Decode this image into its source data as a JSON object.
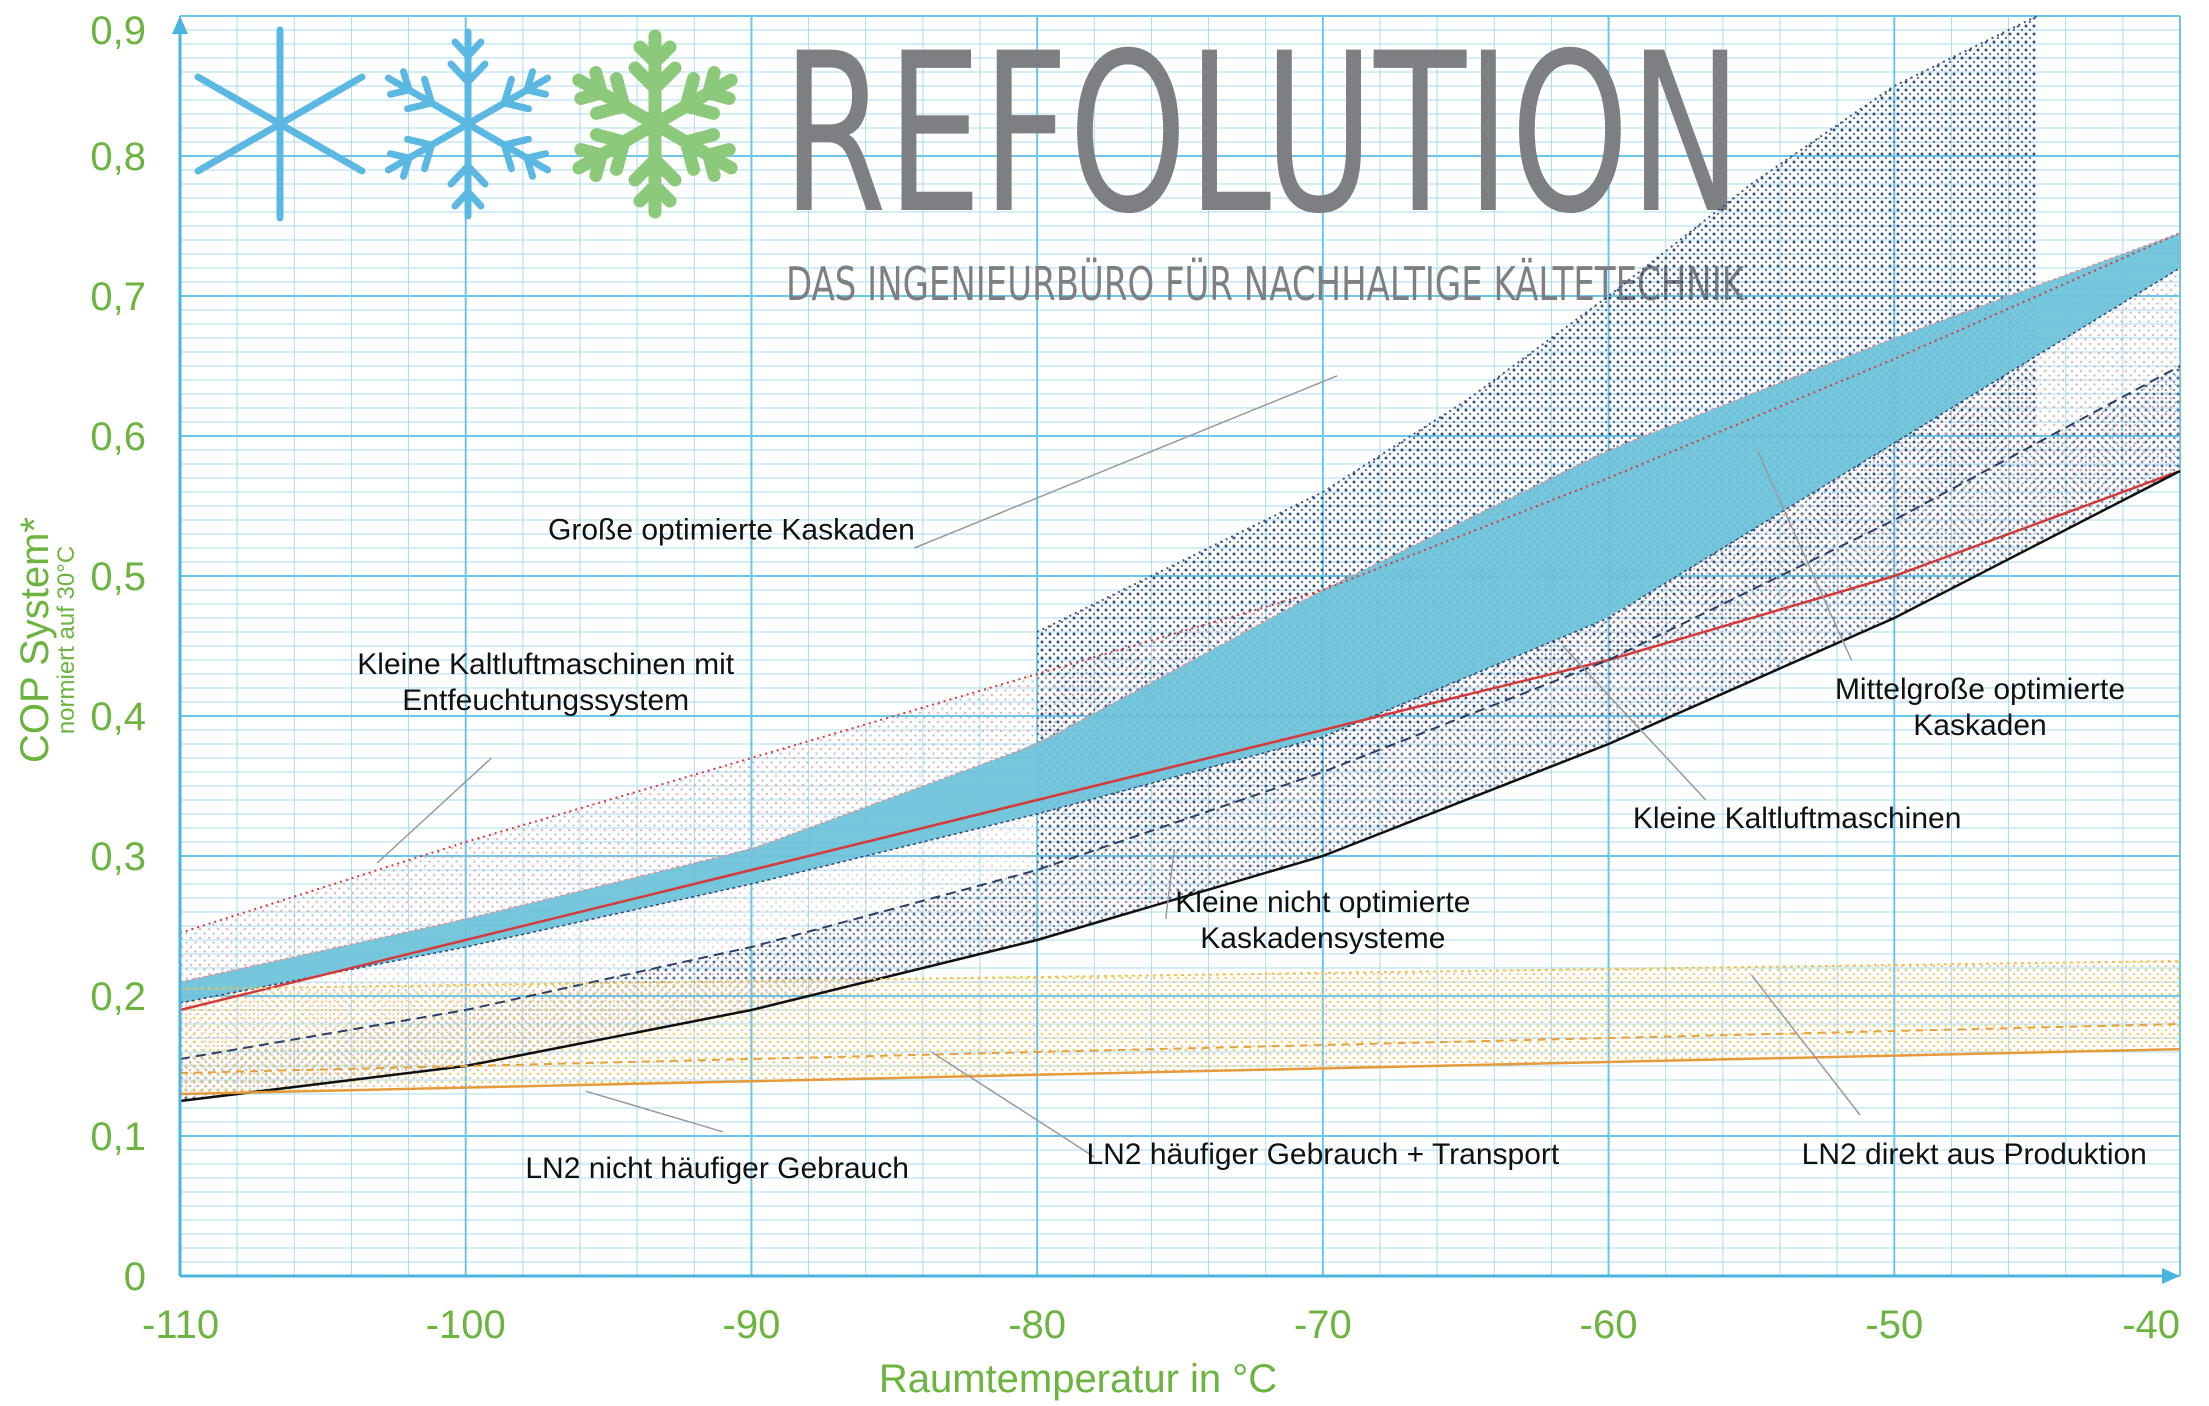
{
  "chart_data": {
    "type": "area",
    "xlabel": "Raumtemperatur in °C",
    "ylabel": "COP System*",
    "ylabel_sub": "normiert auf 30°C",
    "xlim": [
      -110,
      -40
    ],
    "ylim": [
      0,
      0.9
    ],
    "x_ticks": [
      "-110",
      "-100",
      "-90",
      "-80",
      "-70",
      "-60",
      "-50",
      "-40"
    ],
    "y_ticks": [
      "0",
      "0,1",
      "0,2",
      "0,3",
      "0,4",
      "0,5",
      "0,6",
      "0,7",
      "0,8",
      "0,9"
    ],
    "grid": true,
    "colors": {
      "axis": "#4ab3df",
      "grid": "#a9dbf0",
      "tick_text": "#6db33f",
      "blue_band": "#6fc3da",
      "red": "#d43a3a",
      "orange": "#e59a3b",
      "black": "#111111",
      "dots_dark": "#1f3d70",
      "dots_light": "#e9a8a8",
      "dots_yellow": "#f0cf66"
    },
    "series": [
      {
        "key": "top_envelope",
        "style": "dotted-dark",
        "x": [
          -80,
          -75,
          -70,
          -65,
          -60,
          -55,
          -50,
          -45
        ],
        "y": [
          0.46,
          0.51,
          0.56,
          0.625,
          0.7,
          0.78,
          0.85,
          0.9
        ]
      },
      {
        "key": "red_dotted_top",
        "style": "dotted-red",
        "x": [
          -110,
          -100,
          -90,
          -80,
          -70,
          -60,
          -50,
          -40
        ],
        "y": [
          0.245,
          0.31,
          0.37,
          0.43,
          0.49,
          0.57,
          0.655,
          0.745
        ]
      },
      {
        "key": "blue_top",
        "x": [
          -110,
          -100,
          -90,
          -80,
          -70,
          -60,
          -50,
          -40
        ],
        "y": [
          0.21,
          0.255,
          0.305,
          0.38,
          0.49,
          0.59,
          0.67,
          0.745
        ]
      },
      {
        "key": "blue_bottom",
        "x": [
          -110,
          -100,
          -90,
          -80,
          -70,
          -60,
          -50,
          -40
        ],
        "y": [
          0.195,
          0.235,
          0.28,
          0.33,
          0.385,
          0.47,
          0.595,
          0.72
        ]
      },
      {
        "key": "red_line",
        "x": [
          -110,
          -100,
          -90,
          -80,
          -70,
          -60,
          -50,
          -40
        ],
        "y": [
          0.19,
          0.24,
          0.29,
          0.34,
          0.39,
          0.44,
          0.5,
          0.575
        ]
      },
      {
        "key": "dashed_dark",
        "x": [
          -110,
          -100,
          -90,
          -80,
          -70,
          -60,
          -50,
          -40
        ],
        "y": [
          0.155,
          0.19,
          0.235,
          0.29,
          0.36,
          0.44,
          0.54,
          0.65
        ]
      },
      {
        "key": "black_line",
        "x": [
          -110,
          -100,
          -90,
          -80,
          -70,
          -60,
          -50,
          -40
        ],
        "y": [
          0.125,
          0.15,
          0.19,
          0.24,
          0.3,
          0.38,
          0.47,
          0.575
        ]
      },
      {
        "key": "yellow_top",
        "x": [
          -110,
          -40
        ],
        "y": [
          0.205,
          0.225
        ]
      },
      {
        "key": "yellow_mid",
        "x": [
          -110,
          -40
        ],
        "y": [
          0.145,
          0.18
        ]
      },
      {
        "key": "orange_line",
        "x": [
          -110,
          -40
        ],
        "y": [
          0.13,
          0.162
        ]
      }
    ],
    "annotations": [
      {
        "lines": [
          "Große optimierte Kaskaden"
        ],
        "anchor": "middle",
        "tx": -90.7,
        "ty": 0.526,
        "lx1": -84.3,
        "ly1": 0.52,
        "lx2": -69.5,
        "ly2": 0.643
      },
      {
        "lines": [
          "Kleine Kaltluftmaschinen mit",
          "Entfeuchtungssystem"
        ],
        "anchor": "middle",
        "tx": -97.2,
        "ty": 0.43,
        "lx1": -99.1,
        "ly1": 0.37,
        "lx2": -103.1,
        "ly2": 0.295
      },
      {
        "lines": [
          "Mittelgroße optimierte",
          "Kaskaden"
        ],
        "anchor": "middle",
        "tx": -47.0,
        "ty": 0.412,
        "lx1": -51.5,
        "ly1": 0.44,
        "lx2": -54.8,
        "ly2": 0.59
      },
      {
        "lines": [
          "Kleine Kaltluftmaschinen"
        ],
        "anchor": "middle",
        "tx": -53.4,
        "ty": 0.32,
        "lx1": -56.6,
        "ly1": 0.34,
        "lx2": -61.6,
        "ly2": 0.45
      },
      {
        "lines": [
          "Kleine nicht optimierte",
          "Kaskadensysteme"
        ],
        "anchor": "middle",
        "tx": -70.0,
        "ty": 0.26,
        "lx1": -75.5,
        "ly1": 0.255,
        "lx2": -75.2,
        "ly2": 0.305
      },
      {
        "lines": [
          "LN2 nicht häufiger Gebrauch"
        ],
        "anchor": "middle",
        "tx": -91.2,
        "ty": 0.07,
        "lx1": -91.0,
        "ly1": 0.103,
        "lx2": -95.8,
        "ly2": 0.132
      },
      {
        "lines": [
          "LN2 häufiger Gebrauch + Transport"
        ],
        "anchor": "middle",
        "tx": -70.0,
        "ty": 0.08,
        "lx1": -78.0,
        "ly1": 0.085,
        "lx2": -83.7,
        "ly2": 0.16
      },
      {
        "lines": [
          "LN2 direkt aus Produktion"
        ],
        "anchor": "middle",
        "tx": -47.2,
        "ty": 0.08,
        "lx1": -51.2,
        "ly1": 0.115,
        "lx2": -55.0,
        "ly2": 0.215
      }
    ]
  },
  "brand": {
    "name": "REFOLUTION",
    "tagline": "DAS INGENIEURBÜRO FÜR NACHHALTIGE KÄLTETECHNIK"
  }
}
